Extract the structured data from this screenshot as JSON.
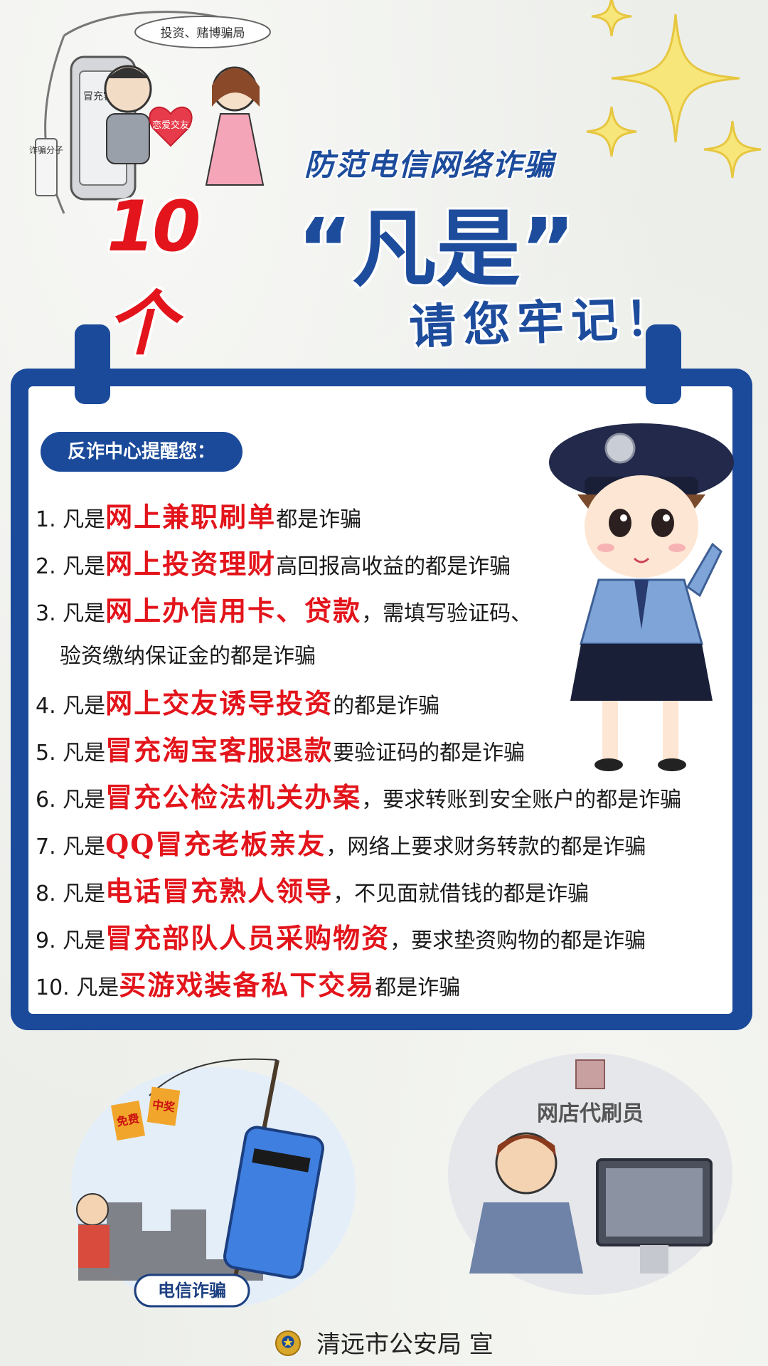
{
  "header": {
    "illustration_labels": {
      "sign": "投资、赌博骗局",
      "heart": "恋爱交友",
      "tag": "诈骗分子",
      "phone": "冒充客服"
    },
    "subtitle": "防范电信网络诈骗",
    "title_number": "10个",
    "title_quote": "“凡是”",
    "tagline": "请您牢记！"
  },
  "card": {
    "pill_label": "反诈中心提醒您：",
    "items": [
      {
        "num": "1.",
        "pre": "凡是",
        "hi": "网上兼职刷单",
        "post": "都是诈骗",
        "cont": ""
      },
      {
        "num": "2.",
        "pre": "凡是",
        "hi": "网上投资理财",
        "post": "高回报高收益的都是诈骗",
        "cont": ""
      },
      {
        "num": "3.",
        "pre": "凡是",
        "hi": "网上办信用卡、贷款",
        "post": "，需填写验证码、",
        "cont": "验资缴纳保证金的都是诈骗"
      },
      {
        "num": "4.",
        "pre": "凡是",
        "hi": "网上交友诱导投资",
        "post": "的都是诈骗",
        "cont": ""
      },
      {
        "num": "5.",
        "pre": "凡是",
        "hi": "冒充淘宝客服退款",
        "post": "要验证码的都是诈骗",
        "cont": ""
      },
      {
        "num": "6.",
        "pre": "凡是",
        "hi": "冒充公检法机关办案",
        "post": "，要求转账到安全账户的都是诈骗",
        "cont": ""
      },
      {
        "num": "7.",
        "pre": "凡是",
        "hi": "QQ冒充老板亲友",
        "post": "，网络上要求财务转款的都是诈骗",
        "cont": ""
      },
      {
        "num": "8.",
        "pre": "凡是",
        "hi": "电话冒充熟人领导",
        "post": "，不见面就借钱的都是诈骗",
        "cont": ""
      },
      {
        "num": "9.",
        "pre": "凡是",
        "hi": "冒充部队人员采购物资",
        "post": "，要求垫资购物的都是诈骗",
        "cont": ""
      },
      {
        "num": "10.",
        "pre": "凡是",
        "hi": "买游戏装备私下交易",
        "post": "都是诈骗",
        "cont": ""
      }
    ]
  },
  "bottom": {
    "left_caption": "电信诈骗",
    "left_bait_1": "免费",
    "left_bait_2": "中奖",
    "right_caption": "网店代刷员"
  },
  "footer": {
    "text": "清远市公安局  宣"
  },
  "colors": {
    "primary_blue": "#1b4a9a",
    "accent_red": "#e3141b",
    "star_yellow": "#f7e67a"
  }
}
